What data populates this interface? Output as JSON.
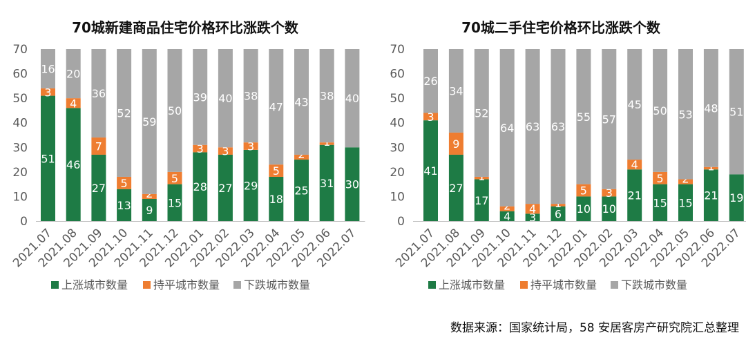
{
  "source_note": "数据来源：国家统计局，58 安居客房产研究院汇总整理",
  "colors": {
    "up": "#1e7b45",
    "flat": "#ee7d31",
    "down": "#a6a6a6",
    "axis": "#bfbfbf",
    "text": "#595959"
  },
  "legend_labels": [
    "上涨城市数量",
    "持平城市数量",
    "下跌城市数量"
  ],
  "chart_data": [
    {
      "type": "bar",
      "stacked": true,
      "title": "70城新建商品住宅价格环比涨跌个数",
      "xlabel": "",
      "ylabel": "",
      "ylim": [
        0,
        70
      ],
      "yticks": [
        0,
        10,
        20,
        30,
        40,
        50,
        60,
        70
      ],
      "legend": "bottom",
      "categories": [
        "2021.07",
        "2021.08",
        "2021.09",
        "2021.10",
        "2021.11",
        "2021.12",
        "2022.01",
        "2022.02",
        "2022.03",
        "2022.04",
        "2022.05",
        "2022.06",
        "2022.07"
      ],
      "series": [
        {
          "name": "上涨城市数量",
          "values": [
            51,
            46,
            27,
            13,
            9,
            15,
            28,
            27,
            29,
            18,
            25,
            31,
            30
          ]
        },
        {
          "name": "持平城市数量",
          "values": [
            3,
            4,
            7,
            5,
            2,
            5,
            3,
            3,
            3,
            5,
            2,
            1,
            0
          ]
        },
        {
          "name": "下跌城市数量",
          "values": [
            16,
            20,
            36,
            52,
            59,
            50,
            39,
            40,
            38,
            47,
            43,
            38,
            40
          ]
        }
      ]
    },
    {
      "type": "bar",
      "stacked": true,
      "title": "70城二手住宅价格环比涨跌个数",
      "xlabel": "",
      "ylabel": "",
      "ylim": [
        0,
        70
      ],
      "yticks": [
        0,
        10,
        20,
        30,
        40,
        50,
        60,
        70
      ],
      "legend": "bottom",
      "categories": [
        "2021.07",
        "2021.08",
        "2021.09",
        "2021.10",
        "2021.11",
        "2021.12",
        "2022.01",
        "2022.02",
        "2022.03",
        "2022.04",
        "2022.05",
        "2022.06",
        "2022.07"
      ],
      "series": [
        {
          "name": "上涨城市数量",
          "values": [
            41,
            27,
            17,
            4,
            3,
            6,
            10,
            10,
            21,
            15,
            15,
            21,
            19
          ]
        },
        {
          "name": "持平城市数量",
          "values": [
            3,
            9,
            1,
            2,
            4,
            1,
            5,
            3,
            4,
            5,
            2,
            1,
            0
          ]
        },
        {
          "name": "下跌城市数量",
          "values": [
            26,
            34,
            52,
            64,
            63,
            63,
            55,
            57,
            45,
            50,
            53,
            48,
            51
          ]
        }
      ]
    }
  ]
}
